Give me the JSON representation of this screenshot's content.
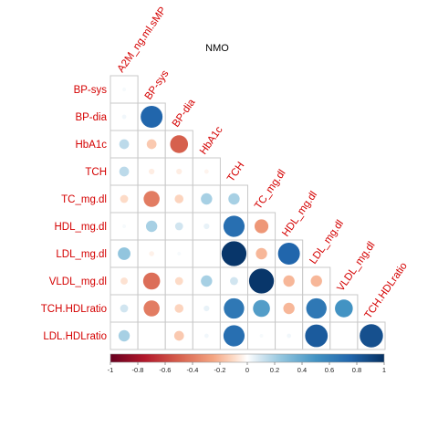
{
  "chart_data": {
    "type": "heatmap",
    "style": "correlation matrix, lower triangle, circles sized and coloured by correlation",
    "title": "NMO",
    "variables": [
      "A2M_ng.ml.sMP",
      "BP-sys",
      "BP-dia",
      "HbA1c",
      "TCH",
      "TC_mg.dl",
      "HDL_mg.dl",
      "LDL_mg.dl",
      "VLDL_mg.dl",
      "TCH.HDLratio",
      "LDL.HDLratio"
    ],
    "column_labels": [
      "A2M_ng.ml.sMP",
      "BP-sys",
      "BP-dia",
      "HbA1c",
      "TCH",
      "TC_mg.dl",
      "HDL_mg.dl",
      "LDL_mg.dl",
      "VLDL_mg.dl",
      "TCH.HDLratio"
    ],
    "row_labels": [
      "BP-sys",
      "BP-dia",
      "HbA1c",
      "TCH",
      "TC_mg.dl",
      "HDL_mg.dl",
      "LDL_mg.dl",
      "VLDL_mg.dl",
      "TCH.HDLratio",
      "LDL.HDLratio"
    ],
    "values": [
      [
        0.02
      ],
      [
        0.03,
        0.75
      ],
      [
        0.15,
        -0.15,
        -0.5
      ],
      [
        0.15,
        -0.05,
        -0.05,
        -0.03
      ],
      [
        -0.1,
        -0.4,
        -0.12,
        0.2,
        0.2
      ],
      [
        0.02,
        0.2,
        0.1,
        0.05,
        0.7,
        -0.3
      ],
      [
        0.25,
        -0.04,
        0.02,
        0.0,
        0.97,
        -0.2,
        0.75
      ],
      [
        -0.08,
        -0.45,
        -0.1,
        0.2,
        0.1,
        0.97,
        -0.2,
        -0.2
      ],
      [
        0.1,
        -0.4,
        -0.12,
        0.05,
        0.65,
        0.45,
        -0.2,
        0.65,
        0.5
      ],
      [
        0.2,
        0.0,
        -0.15,
        0.03,
        0.7,
        0.02,
        0.03,
        0.8,
        0.0,
        0.85
      ]
    ],
    "colorbar": {
      "range": [
        -1,
        1
      ],
      "ticks": [
        "-1",
        "-0.8",
        "-0.6",
        "-0.4",
        "-0.2",
        "0",
        "0.2",
        "0.4",
        "0.6",
        "0.8",
        "1"
      ],
      "negative_color": "#67001f",
      "zero_color": "#ffffff",
      "positive_color": "#053061"
    },
    "label_color": "#d40000",
    "grid": true
  }
}
